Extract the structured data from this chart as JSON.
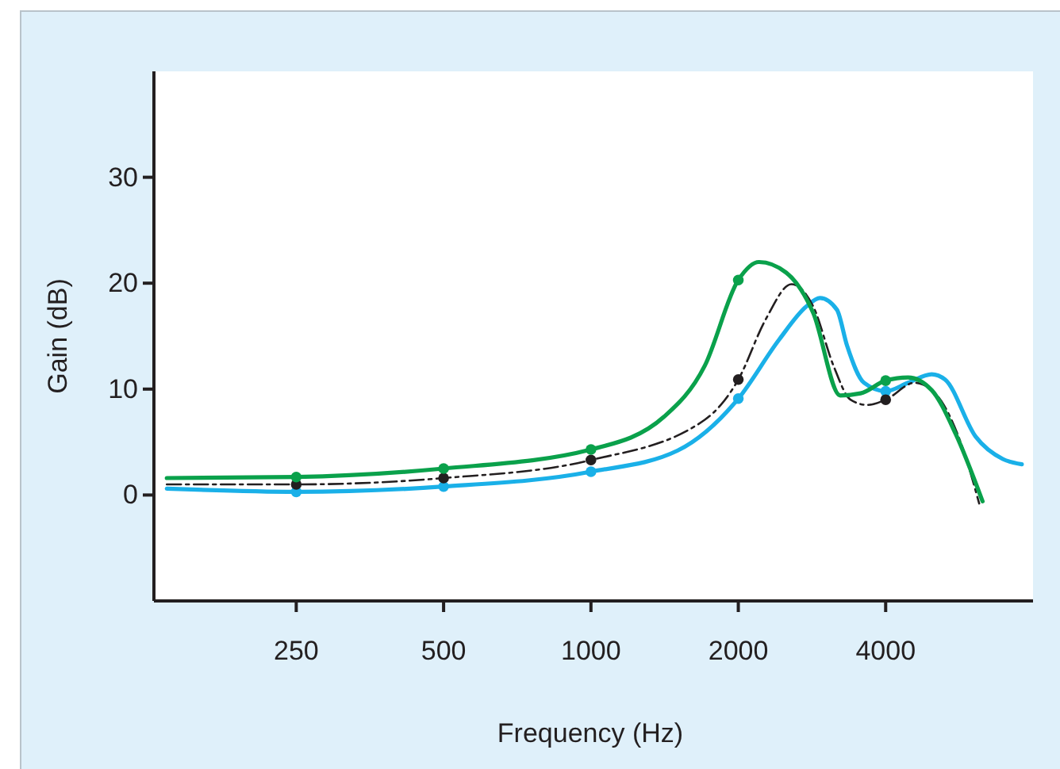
{
  "chart_data": {
    "type": "line",
    "xlabel": "Frequency (Hz)",
    "ylabel": "Gain (dB)",
    "log": "x",
    "xlim": [
      128,
      8000
    ],
    "xticks": [
      250,
      500,
      1000,
      2000,
      4000
    ],
    "ylim": [
      -10,
      40
    ],
    "yticks": [
      0,
      10,
      20,
      30
    ],
    "grid": false,
    "series": [
      {
        "color": "#1ab0e8",
        "line_style": "solid",
        "marker": "none",
        "x": [
          136,
          250,
          500,
          1000,
          1504,
          2000,
          2426,
          2755,
          2937,
          3180,
          3336,
          3612,
          4000,
          4445,
          4967,
          5290,
          6110,
          6940,
          7590
        ],
        "values": [
          0.6,
          0.3,
          0.8,
          2.2,
          4.2,
          9.1,
          14.7,
          17.8,
          18.6,
          17.5,
          14.1,
          10.6,
          9.8,
          10.6,
          11.4,
          10.9,
          5.5,
          3.4,
          2.9
        ]
      },
      {
        "color": "#231f20",
        "line_style": "dashed",
        "marker": "none",
        "x": [
          136,
          250,
          500,
          1000,
          1708,
          2000,
          2276,
          2568,
          2845,
          3130,
          3390,
          3670,
          4000,
          4587,
          5050,
          5730,
          6210
        ],
        "values": [
          1.0,
          1.0,
          1.6,
          3.3,
          7.1,
          10.9,
          16.6,
          19.9,
          17.8,
          12.2,
          9.0,
          8.5,
          9.0,
          10.6,
          9.6,
          4.6,
          -0.8
        ]
      },
      {
        "color": "#0aa14b",
        "line_style": "solid",
        "marker": "none",
        "x": [
          136,
          250,
          500,
          1000,
          1411,
          1708,
          2000,
          2205,
          2505,
          2845,
          3230,
          3555,
          4000,
          4445,
          4967,
          5556,
          6310
        ],
        "values": [
          1.6,
          1.7,
          2.5,
          4.3,
          7.4,
          12.2,
          20.3,
          22.0,
          21.0,
          17.2,
          9.4,
          9.6,
          10.8,
          11.1,
          9.9,
          5.8,
          -0.6
        ]
      },
      {
        "type": "scatter",
        "color": "#1ab0e8",
        "marker": "circle",
        "x": [
          250,
          500,
          1000,
          2000,
          4000
        ],
        "values": [
          0.3,
          0.8,
          2.2,
          9.1,
          9.8
        ]
      },
      {
        "type": "scatter",
        "color": "#231f20",
        "marker": "circle",
        "x": [
          250,
          500,
          1000,
          2000,
          4000
        ],
        "values": [
          1.0,
          1.6,
          3.3,
          10.9,
          9.0
        ]
      },
      {
        "type": "scatter",
        "color": "#0aa14b",
        "marker": "circle",
        "x": [
          250,
          500,
          1000,
          2000,
          4000
        ],
        "values": [
          1.7,
          2.5,
          4.3,
          20.3,
          10.8
        ]
      }
    ]
  }
}
